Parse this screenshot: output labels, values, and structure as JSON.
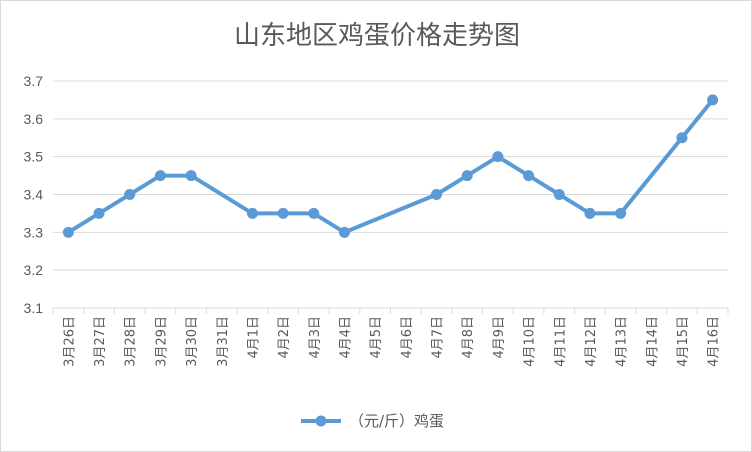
{
  "chart_data": {
    "type": "line",
    "title": "山东地区鸡蛋价格走势图",
    "xlabel": "",
    "ylabel": "",
    "ylim": [
      3.1,
      3.7
    ],
    "yticks": [
      "3.1",
      "3.2",
      "3.3",
      "3.4",
      "3.5",
      "3.6",
      "3.7"
    ],
    "grid": true,
    "legend_position": "bottom",
    "categories": [
      "3月26日",
      "3月27日",
      "3月28日",
      "3月29日",
      "3月30日",
      "3月31日",
      "4月1日",
      "4月2日",
      "4月3日",
      "4月4日",
      "4月5日",
      "4月6日",
      "4月7日",
      "4月8日",
      "4月9日",
      "4月10日",
      "4月11日",
      "4月12日",
      "4月13日",
      "4月14日",
      "4月15日",
      "4月16日"
    ],
    "series": [
      {
        "name": "（元/斤）鸡蛋",
        "color": "#5b9bd5",
        "values": [
          3.3,
          3.35,
          3.4,
          3.45,
          3.45,
          null,
          3.35,
          3.35,
          3.35,
          3.3,
          null,
          null,
          3.4,
          3.45,
          3.5,
          3.45,
          3.4,
          3.35,
          3.35,
          null,
          3.55,
          3.65
        ]
      }
    ]
  }
}
